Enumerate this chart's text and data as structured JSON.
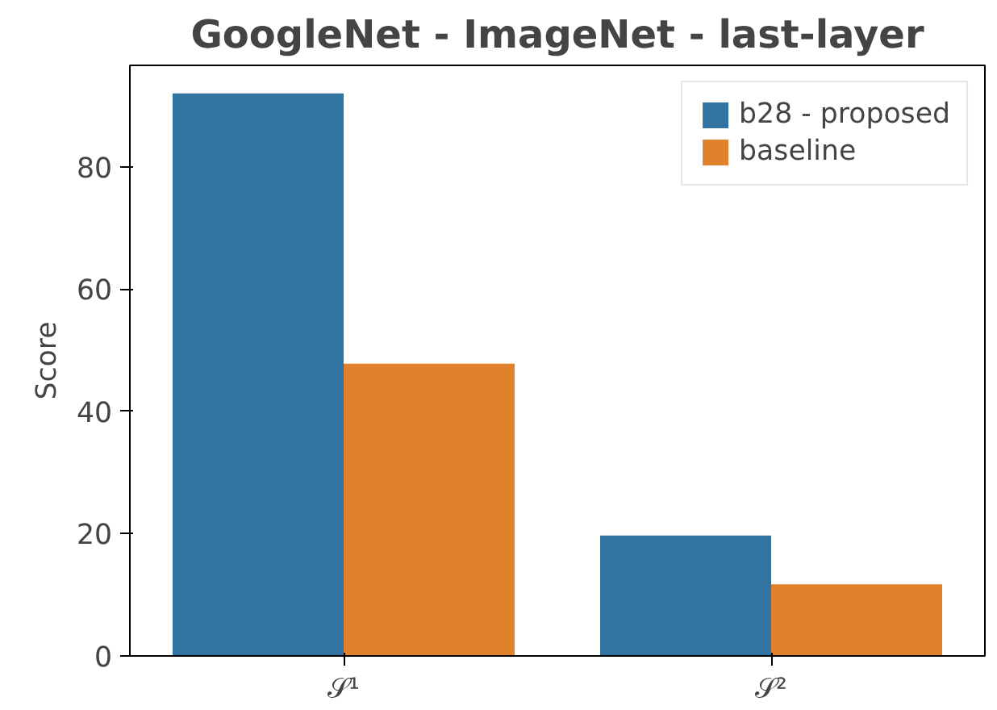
{
  "chart_data": {
    "type": "bar",
    "title": "GoogleNet - ImageNet - last-layer",
    "ylabel": "Score",
    "categories": [
      "𝒮¹",
      "𝒮²"
    ],
    "series": [
      {
        "name": "b28 - proposed",
        "color": "#3274a1",
        "values": [
          92,
          19.7
        ]
      },
      {
        "name": "baseline",
        "color": "#e1812c",
        "values": [
          47.8,
          11.7
        ]
      }
    ],
    "ylim": [
      0,
      96.6
    ],
    "yticks": [
      0,
      20,
      40,
      60,
      80
    ],
    "grid": false,
    "legend": "top right"
  }
}
